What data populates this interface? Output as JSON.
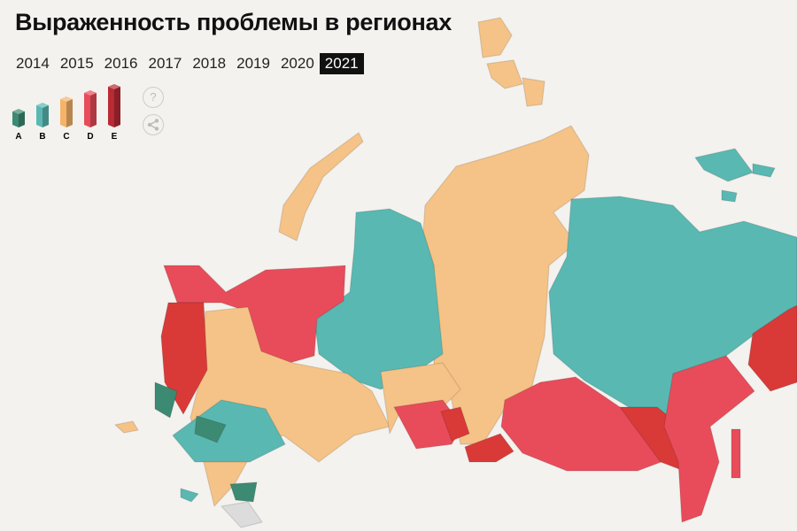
{
  "title": "Выраженность проблемы в регионах",
  "years": [
    "2014",
    "2015",
    "2016",
    "2017",
    "2018",
    "2019",
    "2020",
    "2021"
  ],
  "selected_year": "2021",
  "legend": [
    {
      "label": "A",
      "color": "#3d8a73",
      "level": 1
    },
    {
      "label": "B",
      "color": "#5ab8b2",
      "level": 2
    },
    {
      "label": "C",
      "color": "#f5b36a",
      "level": 3
    },
    {
      "label": "D",
      "color": "#e84c5a",
      "level": 4
    },
    {
      "label": "E",
      "color": "#b82a34",
      "level": 5
    }
  ],
  "buttons": {
    "help": "?",
    "share": "share-icon"
  },
  "map_colors": {
    "A": "#3d8a73",
    "B": "#5ab8b2",
    "C": "#f5c387",
    "D": "#e84c5a",
    "E": "#d93a38",
    "none": "#dcdcdc"
  }
}
